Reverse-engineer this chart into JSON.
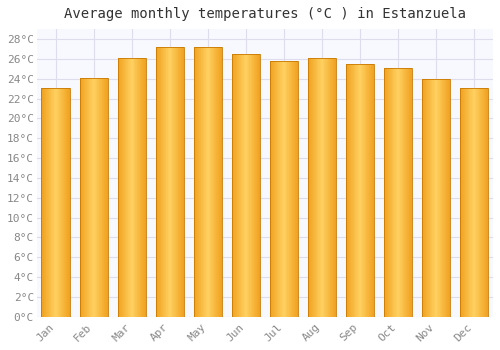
{
  "title": "Average monthly temperatures (°C ) in Estanzuela",
  "months": [
    "Jan",
    "Feb",
    "Mar",
    "Apr",
    "May",
    "Jun",
    "Jul",
    "Aug",
    "Sep",
    "Oct",
    "Nov",
    "Dec"
  ],
  "values": [
    23.1,
    24.1,
    26.1,
    27.2,
    27.2,
    26.5,
    25.8,
    26.1,
    25.5,
    25.1,
    24.0,
    23.1
  ],
  "bar_color_center": "#FFD060",
  "bar_color_edge": "#F0A020",
  "ylim": [
    0,
    29
  ],
  "ytick_step": 2,
  "background_color": "#ffffff",
  "plot_bg_color": "#f8f8ff",
  "grid_color": "#ddddee",
  "title_fontsize": 10,
  "tick_fontsize": 8,
  "tick_color": "#888888",
  "bar_width": 0.75
}
